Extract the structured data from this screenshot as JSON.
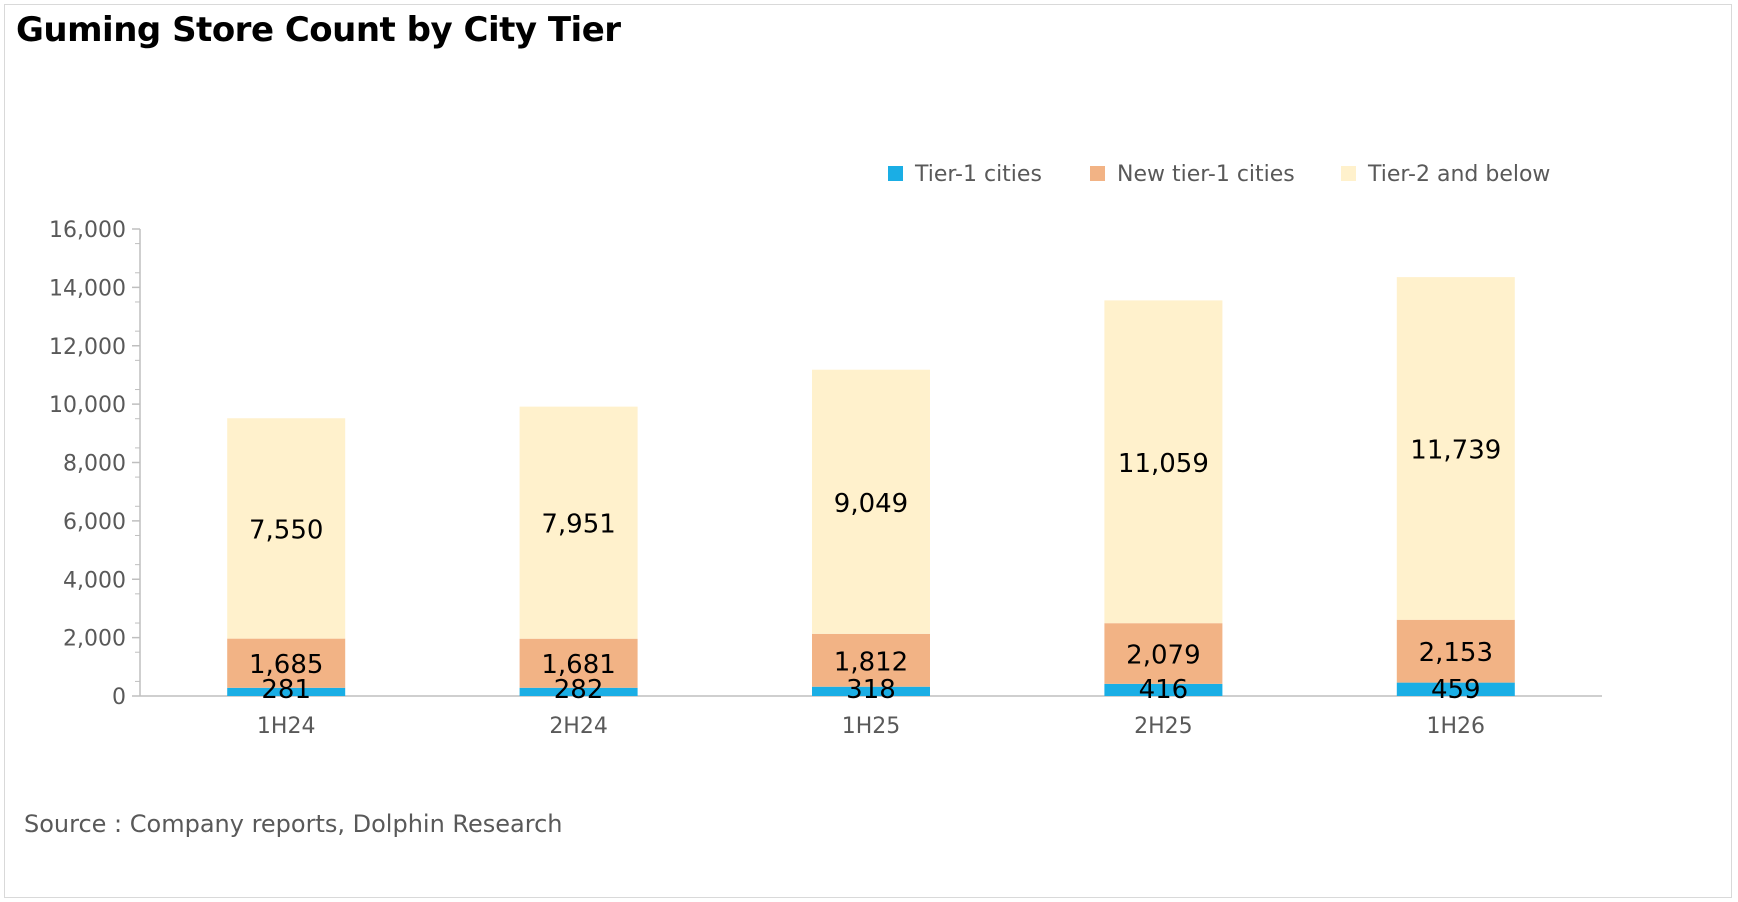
{
  "title": "Guming Store Count by City Tier",
  "source": "Source : Company reports, Dolphin Research",
  "chart_data": {
    "type": "bar",
    "stacked": true,
    "title": "Guming Store Count by City Tier",
    "xlabel": "",
    "ylabel": "",
    "ylim": [
      0,
      16000
    ],
    "yticks": [
      0,
      2000,
      4000,
      6000,
      8000,
      10000,
      12000,
      14000,
      16000
    ],
    "ytick_labels": [
      "0",
      "2,000",
      "4,000",
      "6,000",
      "8,000",
      "10,000",
      "12,000",
      "14,000",
      "16,000"
    ],
    "categories": [
      "1H24",
      "2H24",
      "1H25",
      "2H25",
      "1H26"
    ],
    "legend_position": "top-right",
    "grid": false,
    "series": [
      {
        "name": "Tier-1 cities",
        "color": "#1aaee5",
        "values": [
          281,
          282,
          318,
          416,
          459
        ],
        "labels": [
          "281",
          "282",
          "318",
          "416",
          "459"
        ]
      },
      {
        "name": "New tier-1 cities",
        "color": "#f2b385",
        "values": [
          1685,
          1681,
          1812,
          2079,
          2153
        ],
        "labels": [
          "1,685",
          "1,681",
          "1,812",
          "2,079",
          "2,153"
        ]
      },
      {
        "name": "Tier-2 and below",
        "color": "#fff1cc",
        "values": [
          7550,
          7951,
          9049,
          11059,
          11739
        ],
        "labels": [
          "7,550",
          "7,951",
          "9,049",
          "11,059",
          "11,739"
        ]
      }
    ]
  }
}
